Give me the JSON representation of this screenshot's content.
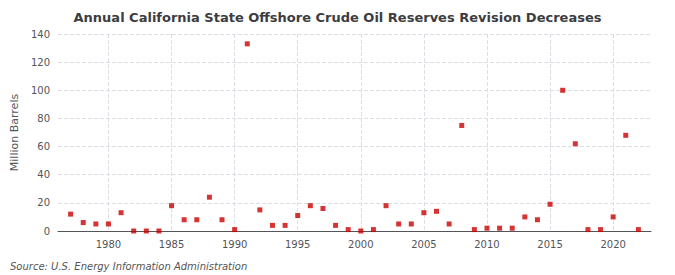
{
  "chart_data": {
    "type": "scatter",
    "title": "Annual California State Offshore Crude Oil Reserves Revision Decreases",
    "ylabel": "Million Barrels",
    "annotations": [
      "Source: U.S. Energy Information Administration"
    ],
    "color": "#cc0000",
    "marker": "square",
    "grid": true,
    "xlim": [
      1976,
      2023
    ],
    "ylim": [
      0,
      140
    ],
    "xticks": [
      1980,
      1985,
      1990,
      1995,
      2000,
      2005,
      2010,
      2015,
      2020
    ],
    "yticks": [
      0,
      20,
      40,
      60,
      80,
      100,
      120,
      140
    ],
    "x": [
      1977,
      1978,
      1979,
      1980,
      1981,
      1982,
      1983,
      1984,
      1985,
      1986,
      1987,
      1988,
      1989,
      1990,
      1991,
      1992,
      1993,
      1994,
      1995,
      1996,
      1997,
      1998,
      1999,
      2000,
      2001,
      2002,
      2003,
      2004,
      2005,
      2006,
      2007,
      2008,
      2009,
      2010,
      2011,
      2012,
      2013,
      2014,
      2015,
      2016,
      2017,
      2018,
      2019,
      2020,
      2021,
      2022
    ],
    "values": [
      12,
      6,
      5,
      5,
      13,
      0,
      0,
      0,
      18,
      8,
      8,
      24,
      8,
      1,
      133,
      15,
      4,
      4,
      11,
      18,
      16,
      4,
      1,
      0,
      1,
      18,
      5,
      5,
      13,
      14,
      5,
      75,
      1,
      2,
      2,
      2,
      10,
      8,
      19,
      100,
      62,
      1,
      1,
      10,
      68,
      1
    ]
  }
}
